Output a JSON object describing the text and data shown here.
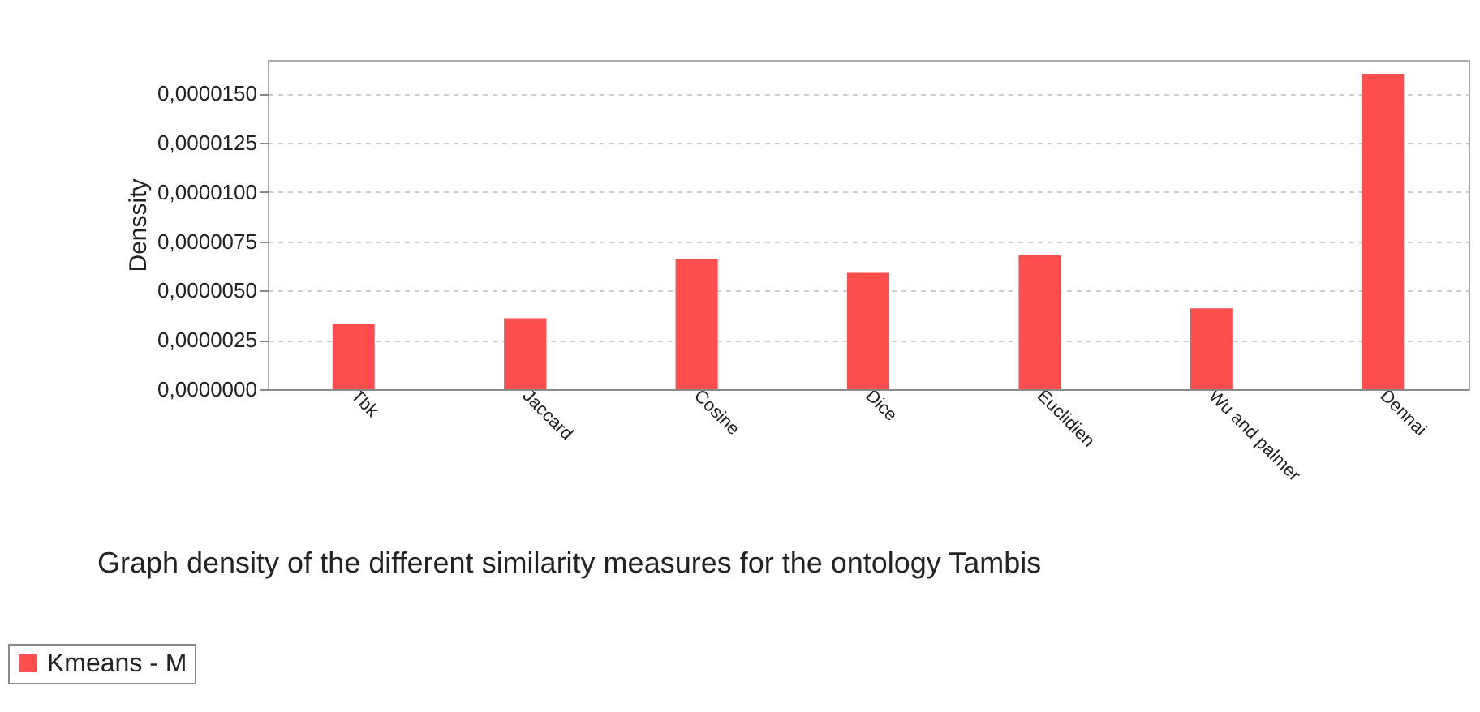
{
  "chart_data": {
    "type": "bar",
    "title": "Graph density of the  different similarity measures for   the ontology Tambis",
    "ylabel": "Denssity",
    "categories": [
      "Tbk",
      "Jaccard",
      "Cosine",
      "Dice",
      "Euclidien",
      "Wu and palmer",
      "Dennai"
    ],
    "series": [
      {
        "name": "Kmeans - M",
        "color": "#ff4c4c",
        "values": [
          3.3e-06,
          3.6e-06,
          6.6e-06,
          5.9e-06,
          6.8e-06,
          4.1e-06,
          1.6e-05
        ]
      }
    ],
    "ylim": [
      0,
      1.67e-05
    ],
    "yticks": [
      {
        "value": 0,
        "label": "0,0000000"
      },
      {
        "value": 2.5e-06,
        "label": "0,0000025"
      },
      {
        "value": 5e-06,
        "label": "0,0000050"
      },
      {
        "value": 7.5e-06,
        "label": "0,0000075"
      },
      {
        "value": 1e-05,
        "label": "0,0000100"
      },
      {
        "value": 1.25e-05,
        "label": "0,0000125"
      },
      {
        "value": 1.5e-05,
        "label": "0,0000150"
      }
    ],
    "grid": "y",
    "legend": "bottom left"
  }
}
